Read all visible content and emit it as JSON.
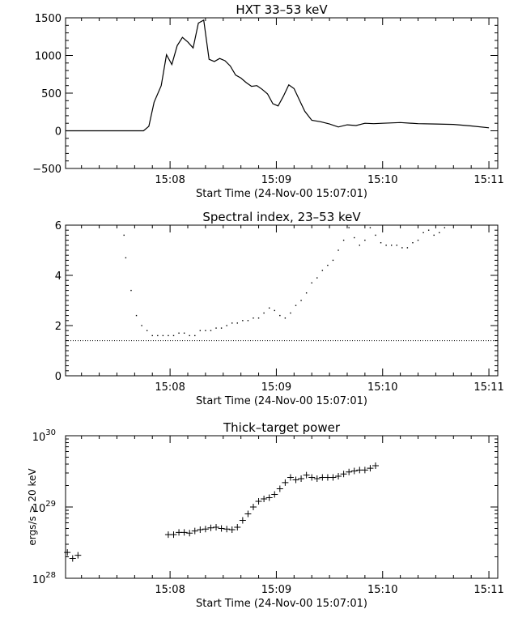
{
  "chart_data": [
    {
      "type": "line",
      "title": "HXT 33–53 keV",
      "xlabel": "Start Time (24-Nov-00 15:07:01)",
      "ylabel": "",
      "x_ticks": [
        "15:08",
        "15:09",
        "15:10",
        "15:11"
      ],
      "y_ticks": [
        "1500",
        "1000",
        "500",
        "0",
        "−500"
      ],
      "xlim": [
        "15:07:01",
        "15:11:05"
      ],
      "ylim": [
        -500,
        1500
      ],
      "grid": false,
      "series": [
        {
          "x": [
            "15:07:01",
            "15:07:30",
            "15:07:45",
            "15:07:48",
            "15:07:51",
            "15:07:55",
            "15:07:58",
            "15:08:01",
            "15:08:04",
            "15:08:07",
            "15:08:10",
            "15:08:13",
            "15:08:16",
            "15:08:19",
            "15:08:22",
            "15:08:25",
            "15:08:28",
            "15:08:31",
            "15:08:34",
            "15:08:37",
            "15:08:40",
            "15:08:43",
            "15:08:46",
            "15:08:49",
            "15:08:52",
            "15:08:55",
            "15:08:58",
            "15:09:01",
            "15:09:04",
            "15:09:07",
            "15:09:10",
            "15:09:13",
            "15:09:16",
            "15:09:20",
            "15:09:25",
            "15:09:30",
            "15:09:35",
            "15:09:40",
            "15:09:45",
            "15:09:50",
            "15:09:55",
            "15:10:00",
            "15:10:10",
            "15:10:20",
            "15:10:30",
            "15:10:40",
            "15:10:50",
            "15:11:00"
          ],
          "y": [
            0,
            0,
            0,
            60,
            380,
            600,
            1010,
            880,
            1130,
            1240,
            1180,
            1100,
            1430,
            1470,
            950,
            920,
            960,
            930,
            860,
            740,
            700,
            640,
            590,
            600,
            550,
            490,
            360,
            330,
            460,
            610,
            560,
            410,
            260,
            140,
            120,
            90,
            50,
            80,
            70,
            100,
            95,
            100,
            110,
            95,
            90,
            85,
            65,
            40
          ]
        }
      ]
    },
    {
      "type": "scatter",
      "title": "Spectral index, 23–53 keV",
      "xlabel": "Start Time (24-Nov-00 15:07:01)",
      "ylabel": "",
      "x_ticks": [
        "15:08",
        "15:09",
        "15:10",
        "15:11"
      ],
      "y_ticks": [
        "6",
        "4",
        "2",
        "0"
      ],
      "xlim": [
        "15:07:01",
        "15:11:05"
      ],
      "ylim": [
        0,
        6
      ],
      "grid": false,
      "reference_line": {
        "y": 1.4,
        "style": "dotted"
      },
      "series": [
        {
          "x": [
            "15:07:34",
            "15:07:35",
            "15:07:38",
            "15:07:41",
            "15:07:44",
            "15:07:47",
            "15:07:50",
            "15:07:53",
            "15:07:56",
            "15:07:59",
            "15:08:02",
            "15:08:05",
            "15:08:08",
            "15:08:11",
            "15:08:14",
            "15:08:17",
            "15:08:20",
            "15:08:23",
            "15:08:26",
            "15:08:29",
            "15:08:32",
            "15:08:35",
            "15:08:38",
            "15:08:41",
            "15:08:44",
            "15:08:47",
            "15:08:50",
            "15:08:53",
            "15:08:56",
            "15:08:59",
            "15:09:02",
            "15:09:05",
            "15:09:08",
            "15:09:11",
            "15:09:14",
            "15:09:17",
            "15:09:20",
            "15:09:23",
            "15:09:26",
            "15:09:29",
            "15:09:32",
            "15:09:35",
            "15:09:38",
            "15:09:41",
            "15:09:44",
            "15:09:47",
            "15:09:50",
            "15:09:53",
            "15:09:56",
            "15:09:59",
            "15:10:02",
            "15:10:05",
            "15:10:08",
            "15:10:11",
            "15:10:14",
            "15:10:17",
            "15:10:20",
            "15:10:23",
            "15:10:26",
            "15:10:29",
            "15:10:32",
            "15:10:35"
          ],
          "y": [
            5.6,
            4.7,
            3.4,
            2.4,
            2.0,
            1.8,
            1.6,
            1.6,
            1.6,
            1.6,
            1.6,
            1.7,
            1.7,
            1.6,
            1.6,
            1.8,
            1.8,
            1.8,
            1.9,
            1.9,
            2.0,
            2.1,
            2.1,
            2.2,
            2.2,
            2.3,
            2.3,
            2.5,
            2.7,
            2.6,
            2.4,
            2.3,
            2.5,
            2.8,
            3.0,
            3.3,
            3.7,
            3.9,
            4.2,
            4.4,
            4.6,
            5.0,
            5.4,
            5.9,
            5.5,
            5.2,
            5.4,
            5.9,
            5.6,
            5.3,
            5.2,
            5.2,
            5.2,
            5.1,
            5.1,
            5.3,
            5.4,
            5.7,
            5.8,
            5.6,
            5.7,
            5.9
          ]
        }
      ]
    },
    {
      "type": "scatter",
      "title": "Thick–target power",
      "xlabel": "Start Time (24-Nov-00 15:07:01)",
      "ylabel": "ergs/s > 20 keV",
      "x_ticks": [
        "15:08",
        "15:09",
        "15:10",
        "15:11"
      ],
      "y_ticks": [
        {
          "base": "10",
          "exp": "30",
          "value": 1e+30
        },
        {
          "base": "10",
          "exp": "29",
          "value": 1e+29
        },
        {
          "base": "10",
          "exp": "28",
          "value": 1e+28
        }
      ],
      "xlim": [
        "15:07:01",
        "15:11:05"
      ],
      "ylim": [
        1e+28,
        1e+30
      ],
      "yscale": "log",
      "marker": "+",
      "grid": false,
      "series": [
        {
          "x": [
            "15:07:02",
            "15:07:05",
            "15:07:08",
            "15:07:59",
            "15:08:02",
            "15:08:05",
            "15:08:08",
            "15:08:11",
            "15:08:14",
            "15:08:17",
            "15:08:20",
            "15:08:23",
            "15:08:26",
            "15:08:29",
            "15:08:32",
            "15:08:35",
            "15:08:38",
            "15:08:41",
            "15:08:44",
            "15:08:47",
            "15:08:50",
            "15:08:53",
            "15:08:56",
            "15:08:59",
            "15:09:02",
            "15:09:05",
            "15:09:08",
            "15:09:11",
            "15:09:14",
            "15:09:17",
            "15:09:20",
            "15:09:23",
            "15:09:26",
            "15:09:29",
            "15:09:32",
            "15:09:35",
            "15:09:38",
            "15:09:41",
            "15:09:44",
            "15:09:47",
            "15:09:50",
            "15:09:53",
            "15:09:56"
          ],
          "y": [
            2.3e+28,
            1.9e+28,
            2.1e+28,
            4.1e+28,
            4.1e+28,
            4.4e+28,
            4.4e+28,
            4.3e+28,
            4.6e+28,
            4.8e+28,
            4.9e+28,
            5.1e+28,
            5.2e+28,
            5e+28,
            4.9e+28,
            4.8e+28,
            5.2e+28,
            6.5e+28,
            8e+28,
            1e+29,
            1.2e+29,
            1.3e+29,
            1.35e+29,
            1.5e+29,
            1.8e+29,
            2.2e+29,
            2.6e+29,
            2.4e+29,
            2.5e+29,
            2.8e+29,
            2.6e+29,
            2.5e+29,
            2.6e+29,
            2.6e+29,
            2.6e+29,
            2.7e+29,
            2.9e+29,
            3.1e+29,
            3.2e+29,
            3.3e+29,
            3.3e+29,
            3.5e+29,
            3.8e+29
          ]
        }
      ]
    }
  ]
}
